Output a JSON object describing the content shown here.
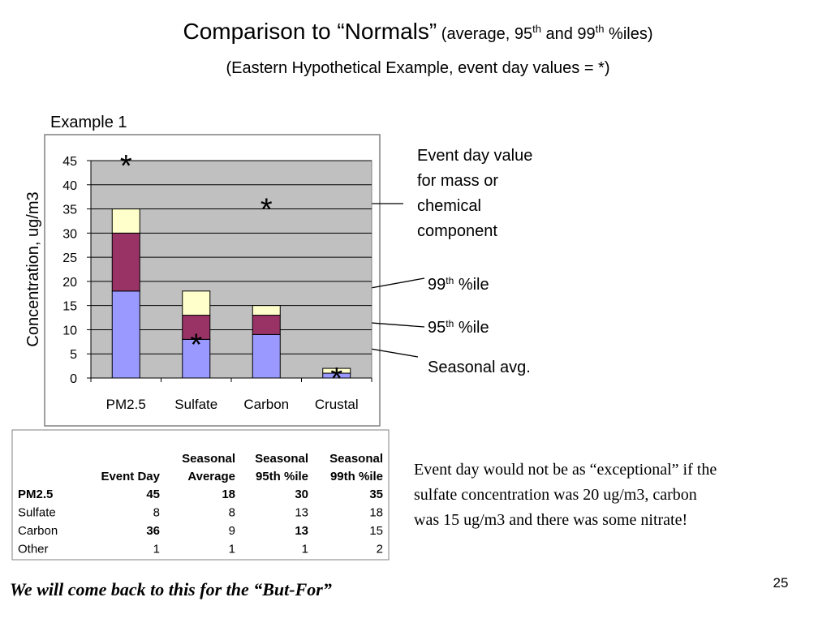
{
  "title": {
    "main": "Comparison to “Normals”",
    "parts": [
      "(average, 95",
      "th",
      " and 99",
      "th",
      " %iles)"
    ]
  },
  "subtitle": "(Eastern Hypothetical Example, event day values = *)",
  "chart_data": {
    "type": "stacked_bar",
    "title": "Example 1",
    "y_label": "Concentration, ug/m3",
    "categories": [
      "PM2.5",
      "Sulfate",
      "Carbon",
      "Crustal"
    ],
    "series": [
      {
        "color": "#9999ff",
        "values": [
          18,
          8,
          9,
          1
        ]
      },
      {
        "color": "#993366",
        "values": [
          12,
          5,
          4,
          0
        ]
      },
      {
        "color": "#ffffcc",
        "values": [
          5,
          5,
          2,
          1
        ]
      }
    ],
    "event_marker": {
      "symbol": "*",
      "values": [
        45,
        8,
        36,
        1
      ]
    },
    "ylim": [
      0,
      45
    ],
    "yticks": [
      0,
      5,
      10,
      15,
      20,
      25,
      30,
      35,
      40,
      45
    ],
    "grid": true,
    "plot_color": "#c0c0c0"
  },
  "annotations": {
    "event": [
      "Event day value",
      "for mass or",
      "chemical",
      "component"
    ],
    "p99": [
      "99",
      "th",
      " %ile"
    ],
    "p95": [
      "95",
      "th",
      " %ile"
    ],
    "avg": "Seasonal avg."
  },
  "table": {
    "columns": [
      [
        "Event Day"
      ],
      [
        "Seasonal",
        "Average"
      ],
      [
        "Seasonal",
        "95th %ile"
      ],
      [
        "Seasonal",
        "99th %ile"
      ]
    ],
    "rows": [
      {
        "label": "PM2.5",
        "cells": [
          "45",
          "18",
          "30",
          "35"
        ],
        "bold": true
      },
      {
        "label": "Sulfate",
        "cells": [
          "8",
          "8",
          "13",
          "18"
        ]
      },
      {
        "label": "Carbon",
        "cells": [
          "36",
          "9",
          "13",
          "15"
        ],
        "highlight": [
          0,
          2
        ]
      },
      {
        "label": "Other",
        "cells": [
          "1",
          "1",
          "1",
          "2"
        ]
      }
    ],
    "highlight_color": "#0000ff"
  },
  "note": [
    "Event day would not be as “exceptional” if the",
    "sulfate concentration was 20 ug/m3, carbon",
    "was 15 ug/m3 and there was some nitrate!"
  ],
  "footer": "We will come back to this for the “But-For”",
  "page_number": "25"
}
